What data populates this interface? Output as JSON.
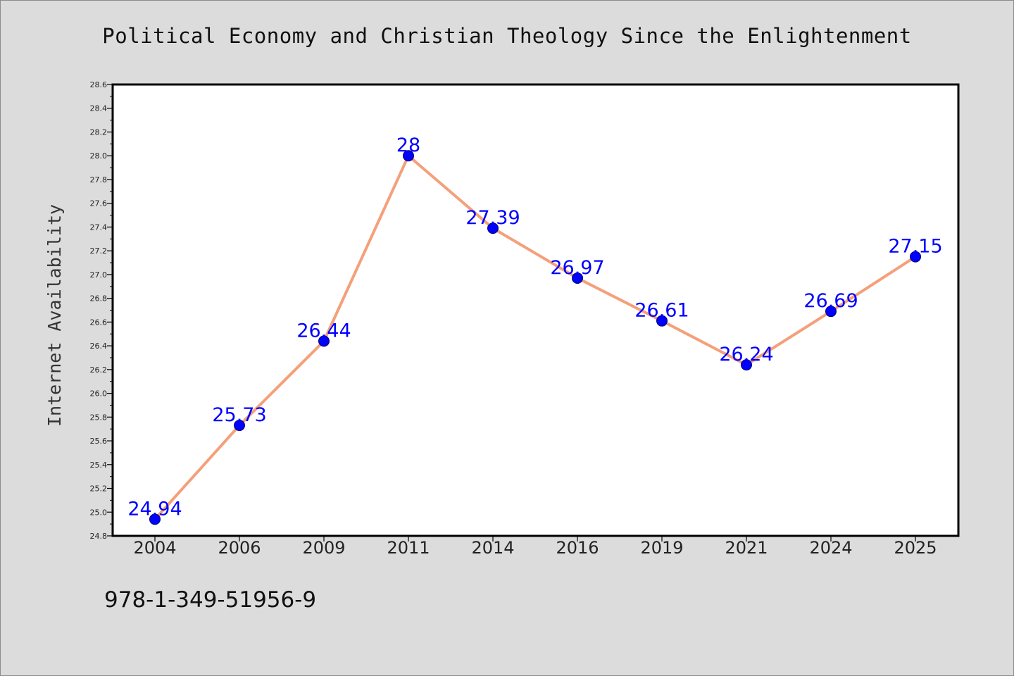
{
  "caption": "978-1-349-51956-9",
  "chart_data": {
    "type": "line",
    "title": "Political Economy and Christian Theology Since the Enlightenment",
    "xlabel": "",
    "ylabel": "Internet Availability",
    "categories": [
      "2004",
      "2006",
      "2009",
      "2011",
      "2014",
      "2016",
      "2019",
      "2021",
      "2024",
      "2025"
    ],
    "values": [
      24.94,
      25.73,
      26.44,
      28,
      27.39,
      26.97,
      26.61,
      26.24,
      26.69,
      27.15
    ],
    "data_labels": [
      "24.94",
      "25.73",
      "26.44",
      "28",
      "27.39",
      "26.97",
      "26.61",
      "26.24",
      "26.69",
      "27.15"
    ],
    "ylim": [
      24.8,
      28.6
    ],
    "yticks": [
      "24.8",
      "25.0",
      "25.2",
      "25.4",
      "25.6",
      "25.8",
      "26.0",
      "26.2",
      "26.4",
      "26.6",
      "26.8",
      "27.0",
      "27.2",
      "27.4",
      "27.6",
      "27.8",
      "28.0",
      "28.2",
      "28.4",
      "28.6"
    ],
    "grid": false,
    "legend": "none",
    "colors": {
      "line": "#f4a07a",
      "marker": "#0000ff",
      "label": "#0000ff",
      "background": "#dcdcdc",
      "plot_background": "#ffffff"
    }
  }
}
